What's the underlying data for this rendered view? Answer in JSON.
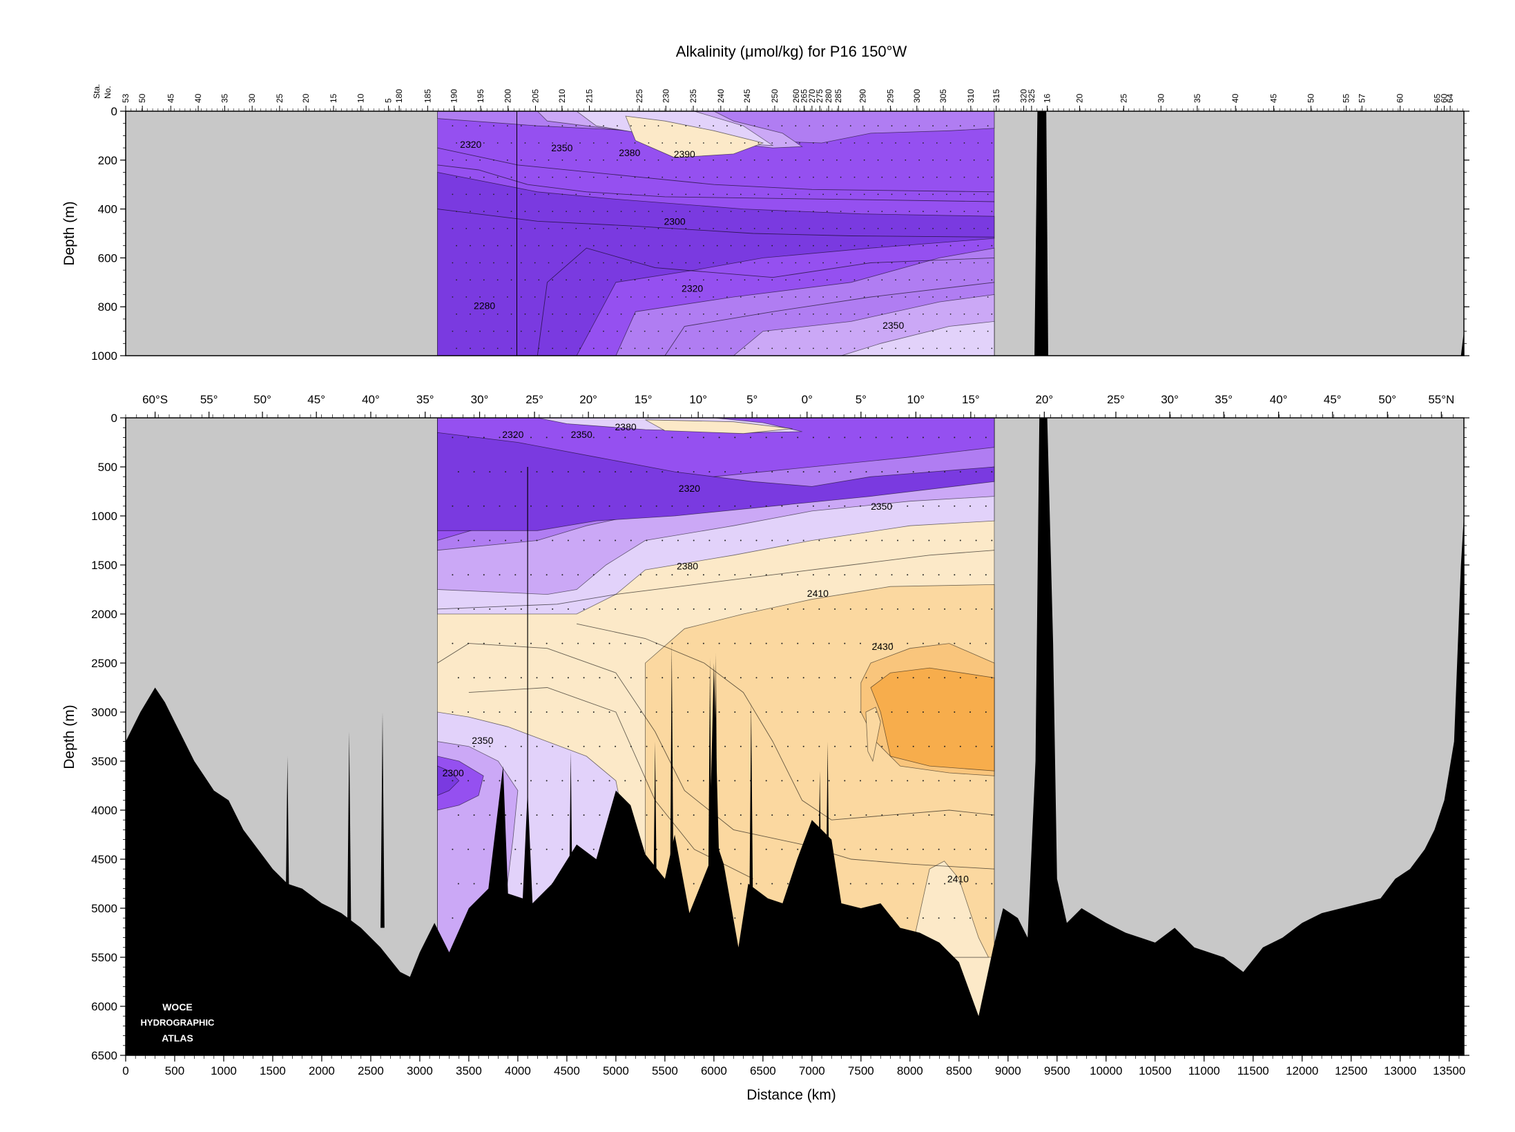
{
  "chart_data": {
    "type": "heatmap",
    "title": "Alkalinity (μmol/kg) for P16 150°W",
    "xlabel": "Distance (km)",
    "station_axis_label": [
      "Sta.",
      "No."
    ],
    "ylabel_top": "Depth (m)",
    "ylabel_bottom": "Depth (m)",
    "xlim": [
      0,
      13650
    ],
    "ylim_top": [
      0,
      1000
    ],
    "ylim_bottom": [
      0,
      6500
    ],
    "data_extent_km": [
      3180,
      8860
    ],
    "second_leg_km": [
      9260,
      9400
    ],
    "grid": false,
    "x_ticks": [
      0,
      500,
      1000,
      1500,
      2000,
      2500,
      3000,
      3500,
      4000,
      4500,
      5000,
      5500,
      6000,
      6500,
      7000,
      7500,
      8000,
      8500,
      9000,
      9500,
      10000,
      10500,
      11000,
      11500,
      12000,
      12500,
      13000,
      13500
    ],
    "y_ticks_top": [
      0,
      200,
      400,
      600,
      800,
      1000
    ],
    "y_ticks_bottom": [
      0,
      500,
      1000,
      1500,
      2000,
      2500,
      3000,
      3500,
      4000,
      4500,
      5000,
      5500,
      6000,
      6500
    ],
    "latitude_ticks": [
      {
        "label": "60°S",
        "km": 300
      },
      {
        "label": "55°",
        "km": 850
      },
      {
        "label": "50°",
        "km": 1395
      },
      {
        "label": "45°",
        "km": 1945
      },
      {
        "label": "40°",
        "km": 2500
      },
      {
        "label": "35°",
        "km": 3055
      },
      {
        "label": "30°",
        "km": 3610
      },
      {
        "label": "25°",
        "km": 4170
      },
      {
        "label": "20°",
        "km": 4720
      },
      {
        "label": "15°",
        "km": 5280
      },
      {
        "label": "10°",
        "km": 5840
      },
      {
        "label": "5°",
        "km": 6390
      },
      {
        "label": "0°",
        "km": 6950
      },
      {
        "label": "5°",
        "km": 7500
      },
      {
        "label": "10°",
        "km": 8060
      },
      {
        "label": "15°",
        "km": 8620
      },
      {
        "label": "20°",
        "km": 9370
      },
      {
        "label": "25°",
        "km": 10100
      },
      {
        "label": "30°",
        "km": 10650
      },
      {
        "label": "35°",
        "km": 11200
      },
      {
        "label": "40°",
        "km": 11760
      },
      {
        "label": "45°",
        "km": 12310
      },
      {
        "label": "50°",
        "km": 12870
      },
      {
        "label": "55°N",
        "km": 13420
      }
    ],
    "station_ticks": [
      {
        "label": "53",
        "km": 0
      },
      {
        "label": "50",
        "km": 170
      },
      {
        "label": "45",
        "km": 460
      },
      {
        "label": "40",
        "km": 740
      },
      {
        "label": "35",
        "km": 1010
      },
      {
        "label": "30",
        "km": 1290
      },
      {
        "label": "25",
        "km": 1570
      },
      {
        "label": "20",
        "km": 1840
      },
      {
        "label": "15",
        "km": 2120
      },
      {
        "label": "10",
        "km": 2400
      },
      {
        "label": "5",
        "km": 2680
      },
      {
        "label": "180",
        "km": 2790
      },
      {
        "label": "185",
        "km": 3080
      },
      {
        "label": "190",
        "km": 3350
      },
      {
        "label": "195",
        "km": 3620
      },
      {
        "label": "200",
        "km": 3900
      },
      {
        "label": "205",
        "km": 4180
      },
      {
        "label": "210",
        "km": 4450
      },
      {
        "label": "215",
        "km": 4730
      },
      {
        "label": "225",
        "km": 5240
      },
      {
        "label": "230",
        "km": 5510
      },
      {
        "label": "235",
        "km": 5790
      },
      {
        "label": "240",
        "km": 6070
      },
      {
        "label": "245",
        "km": 6340
      },
      {
        "label": "250",
        "km": 6620
      },
      {
        "label": "260",
        "km": 6840
      },
      {
        "label": "265",
        "km": 6920
      },
      {
        "label": "270",
        "km": 7000
      },
      {
        "label": "275",
        "km": 7080
      },
      {
        "label": "280",
        "km": 7170
      },
      {
        "label": "285",
        "km": 7270
      },
      {
        "label": "290",
        "km": 7520
      },
      {
        "label": "295",
        "km": 7800
      },
      {
        "label": "300",
        "km": 8070
      },
      {
        "label": "305",
        "km": 8340
      },
      {
        "label": "310",
        "km": 8620
      },
      {
        "label": "315",
        "km": 8880
      },
      {
        "label": "320",
        "km": 9160
      },
      {
        "label": "325",
        "km": 9240
      },
      {
        "label": "16",
        "km": 9400
      },
      {
        "label": "20",
        "km": 9730
      },
      {
        "label": "25",
        "km": 10180
      },
      {
        "label": "30",
        "km": 10560
      },
      {
        "label": "35",
        "km": 10930
      },
      {
        "label": "40",
        "km": 11320
      },
      {
        "label": "45",
        "km": 11710
      },
      {
        "label": "50",
        "km": 12090
      },
      {
        "label": "55",
        "km": 12450
      },
      {
        "label": "57",
        "km": 12610
      },
      {
        "label": "60",
        "km": 13000
      },
      {
        "label": "65",
        "km": 13380
      },
      {
        "label": "60",
        "km": 13450
      },
      {
        "label": "64",
        "km": 13510
      }
    ],
    "contour_labels_top": [
      {
        "text": "2320",
        "km": 3520,
        "depth": 135
      },
      {
        "text": "2350",
        "km": 4450,
        "depth": 150
      },
      {
        "text": "2380",
        "km": 5140,
        "depth": 170
      },
      {
        "text": "2390",
        "km": 5700,
        "depth": 175
      },
      {
        "text": "2300",
        "km": 5600,
        "depth": 450
      },
      {
        "text": "2280",
        "km": 3660,
        "depth": 795
      },
      {
        "text": "2320",
        "km": 5780,
        "depth": 725
      },
      {
        "text": "2350",
        "km": 7830,
        "depth": 875
      }
    ],
    "contour_labels_bottom": [
      {
        "text": "2320",
        "km": 3950,
        "depth": 170
      },
      {
        "text": "2350",
        "km": 4650,
        "depth": 170
      },
      {
        "text": "2380",
        "km": 5100,
        "depth": 90
      },
      {
        "text": "2320",
        "km": 5750,
        "depth": 720
      },
      {
        "text": "2350",
        "km": 7710,
        "depth": 900
      },
      {
        "text": "2380",
        "km": 5730,
        "depth": 1510
      },
      {
        "text": "2410",
        "km": 7060,
        "depth": 1790
      },
      {
        "text": "2430",
        "km": 7720,
        "depth": 2330
      },
      {
        "text": "2350",
        "km": 3640,
        "depth": 3290
      },
      {
        "text": "2300",
        "km": 3340,
        "depth": 3620
      },
      {
        "text": "2410",
        "km": 8490,
        "depth": 4700
      }
    ],
    "logo_text": [
      "WOCE",
      "HYDROGRAPHIC",
      "ATLAS"
    ]
  }
}
